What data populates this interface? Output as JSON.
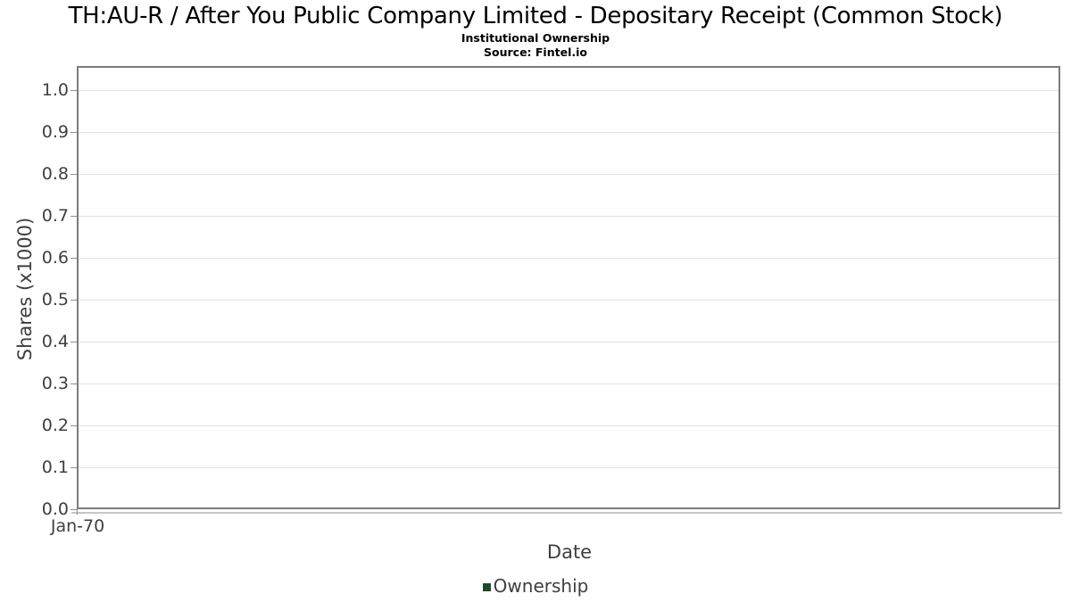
{
  "title": "TH:AU-R / After You Public Company Limited - Depositary Receipt (Common Stock)",
  "subtitle": "Institutional Ownership",
  "source": "Source: Fintel.io",
  "y_axis": {
    "label": "Shares (x1000)",
    "tick_labels": [
      "0.0",
      "0.1",
      "0.2",
      "0.3",
      "0.4",
      "0.5",
      "0.6",
      "0.7",
      "0.8",
      "0.9",
      "1.0"
    ]
  },
  "x_axis": {
    "label": "Date",
    "tick_labels": [
      "Jan-70"
    ]
  },
  "legend": {
    "items": [
      {
        "label": "Ownership",
        "swatch_color": "#1e4a2a",
        "swatch": "square-icon"
      }
    ]
  },
  "colors": {
    "background": "#ffffff",
    "title_text": "#000000",
    "axis_text": "#3f3f3f",
    "plot_border": "#7c7c7c",
    "gridline": "#e3e3e3",
    "tick": "#8f8f8f",
    "x_axis_line": "#c7c7c7",
    "series_ownership": "#1e4a2a"
  },
  "chart_data": {
    "type": "bar",
    "title": "TH:AU-R / After You Public Company Limited - Depositary Receipt (Common Stock)",
    "subtitle": "Institutional Ownership",
    "source": "Source: Fintel.io",
    "xlabel": "Date",
    "ylabel": "Shares (x1000)",
    "x_tick_labels": [
      "Jan-70"
    ],
    "y_ticks": [
      0.0,
      0.1,
      0.2,
      0.3,
      0.4,
      0.5,
      0.6,
      0.7,
      0.8,
      0.9,
      1.0
    ],
    "ylim": [
      0.0,
      1.06
    ],
    "grid": "horizontal-only",
    "legend_position": "bottom-center",
    "series": [
      {
        "name": "Ownership",
        "color": "#1e4a2a",
        "x": [],
        "values": []
      }
    ]
  }
}
